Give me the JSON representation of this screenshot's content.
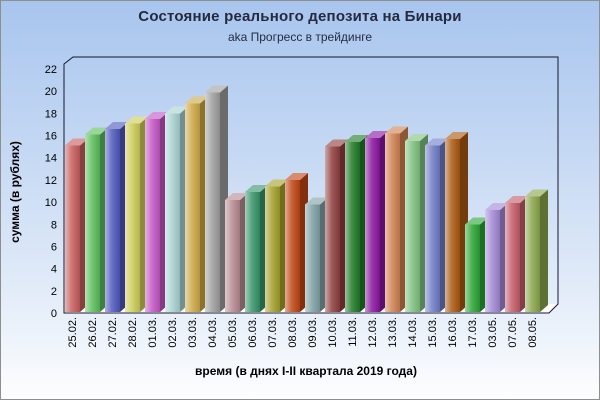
{
  "chart_data": {
    "type": "bar",
    "style": "3d-column",
    "title": "Состояние реального депозита на Бинари",
    "subtitle": "aka Прогресс в трейдинге",
    "xlabel": "время (в днях I-II квартала 2019 года)",
    "ylabel": "сумма (в рублях)",
    "categories": [
      "25.02.",
      "26.02.",
      "27.02.",
      "28.02.",
      "01.03.",
      "02.03.",
      "03.03.",
      "04.03.",
      "05.03.",
      "06.03.",
      "07.03.",
      "08.03.",
      "09.03.",
      "10.03.",
      "11.03.",
      "12.03.",
      "13.03.",
      "14.03.",
      "15.03.",
      "16.03.",
      "17.03.",
      "03.05.",
      "07.05.",
      "08.05."
    ],
    "values": [
      15.1,
      16.1,
      16.6,
      17.1,
      17.5,
      18.0,
      18.9,
      19.9,
      10.2,
      10.9,
      11.4,
      12.0,
      9.8,
      15.0,
      15.4,
      15.8,
      16.2,
      15.5,
      15.1,
      15.7,
      8.0,
      9.3,
      9.9,
      10.5
    ],
    "bar_colors": [
      "#C85C5C",
      "#5BBE5B",
      "#4E58BE",
      "#CCCC58",
      "#C455C4",
      "#A8D2D2",
      "#CCA845",
      "#9E9E9E",
      "#B68A92",
      "#37946A",
      "#A4A02A",
      "#C04515",
      "#7FA0A6",
      "#8F3D3D",
      "#1F7A26",
      "#8A15A0",
      "#D08050",
      "#7FC27F",
      "#6F7CC8",
      "#AA5810",
      "#2BA434",
      "#A287D6",
      "#C45C68",
      "#8AA64A"
    ],
    "ylim": [
      0,
      22
    ],
    "yticks": [
      0,
      2,
      4,
      6,
      8,
      10,
      12,
      14,
      16,
      18,
      20,
      22
    ],
    "grid": "off",
    "legend": "none",
    "axis_line_color": "#16162c",
    "tick_label_color": "#000000",
    "floor_color": "#fdfdfd",
    "background_top_color": "#a8c5ee",
    "background_bottom_color": "#fdfeff"
  }
}
